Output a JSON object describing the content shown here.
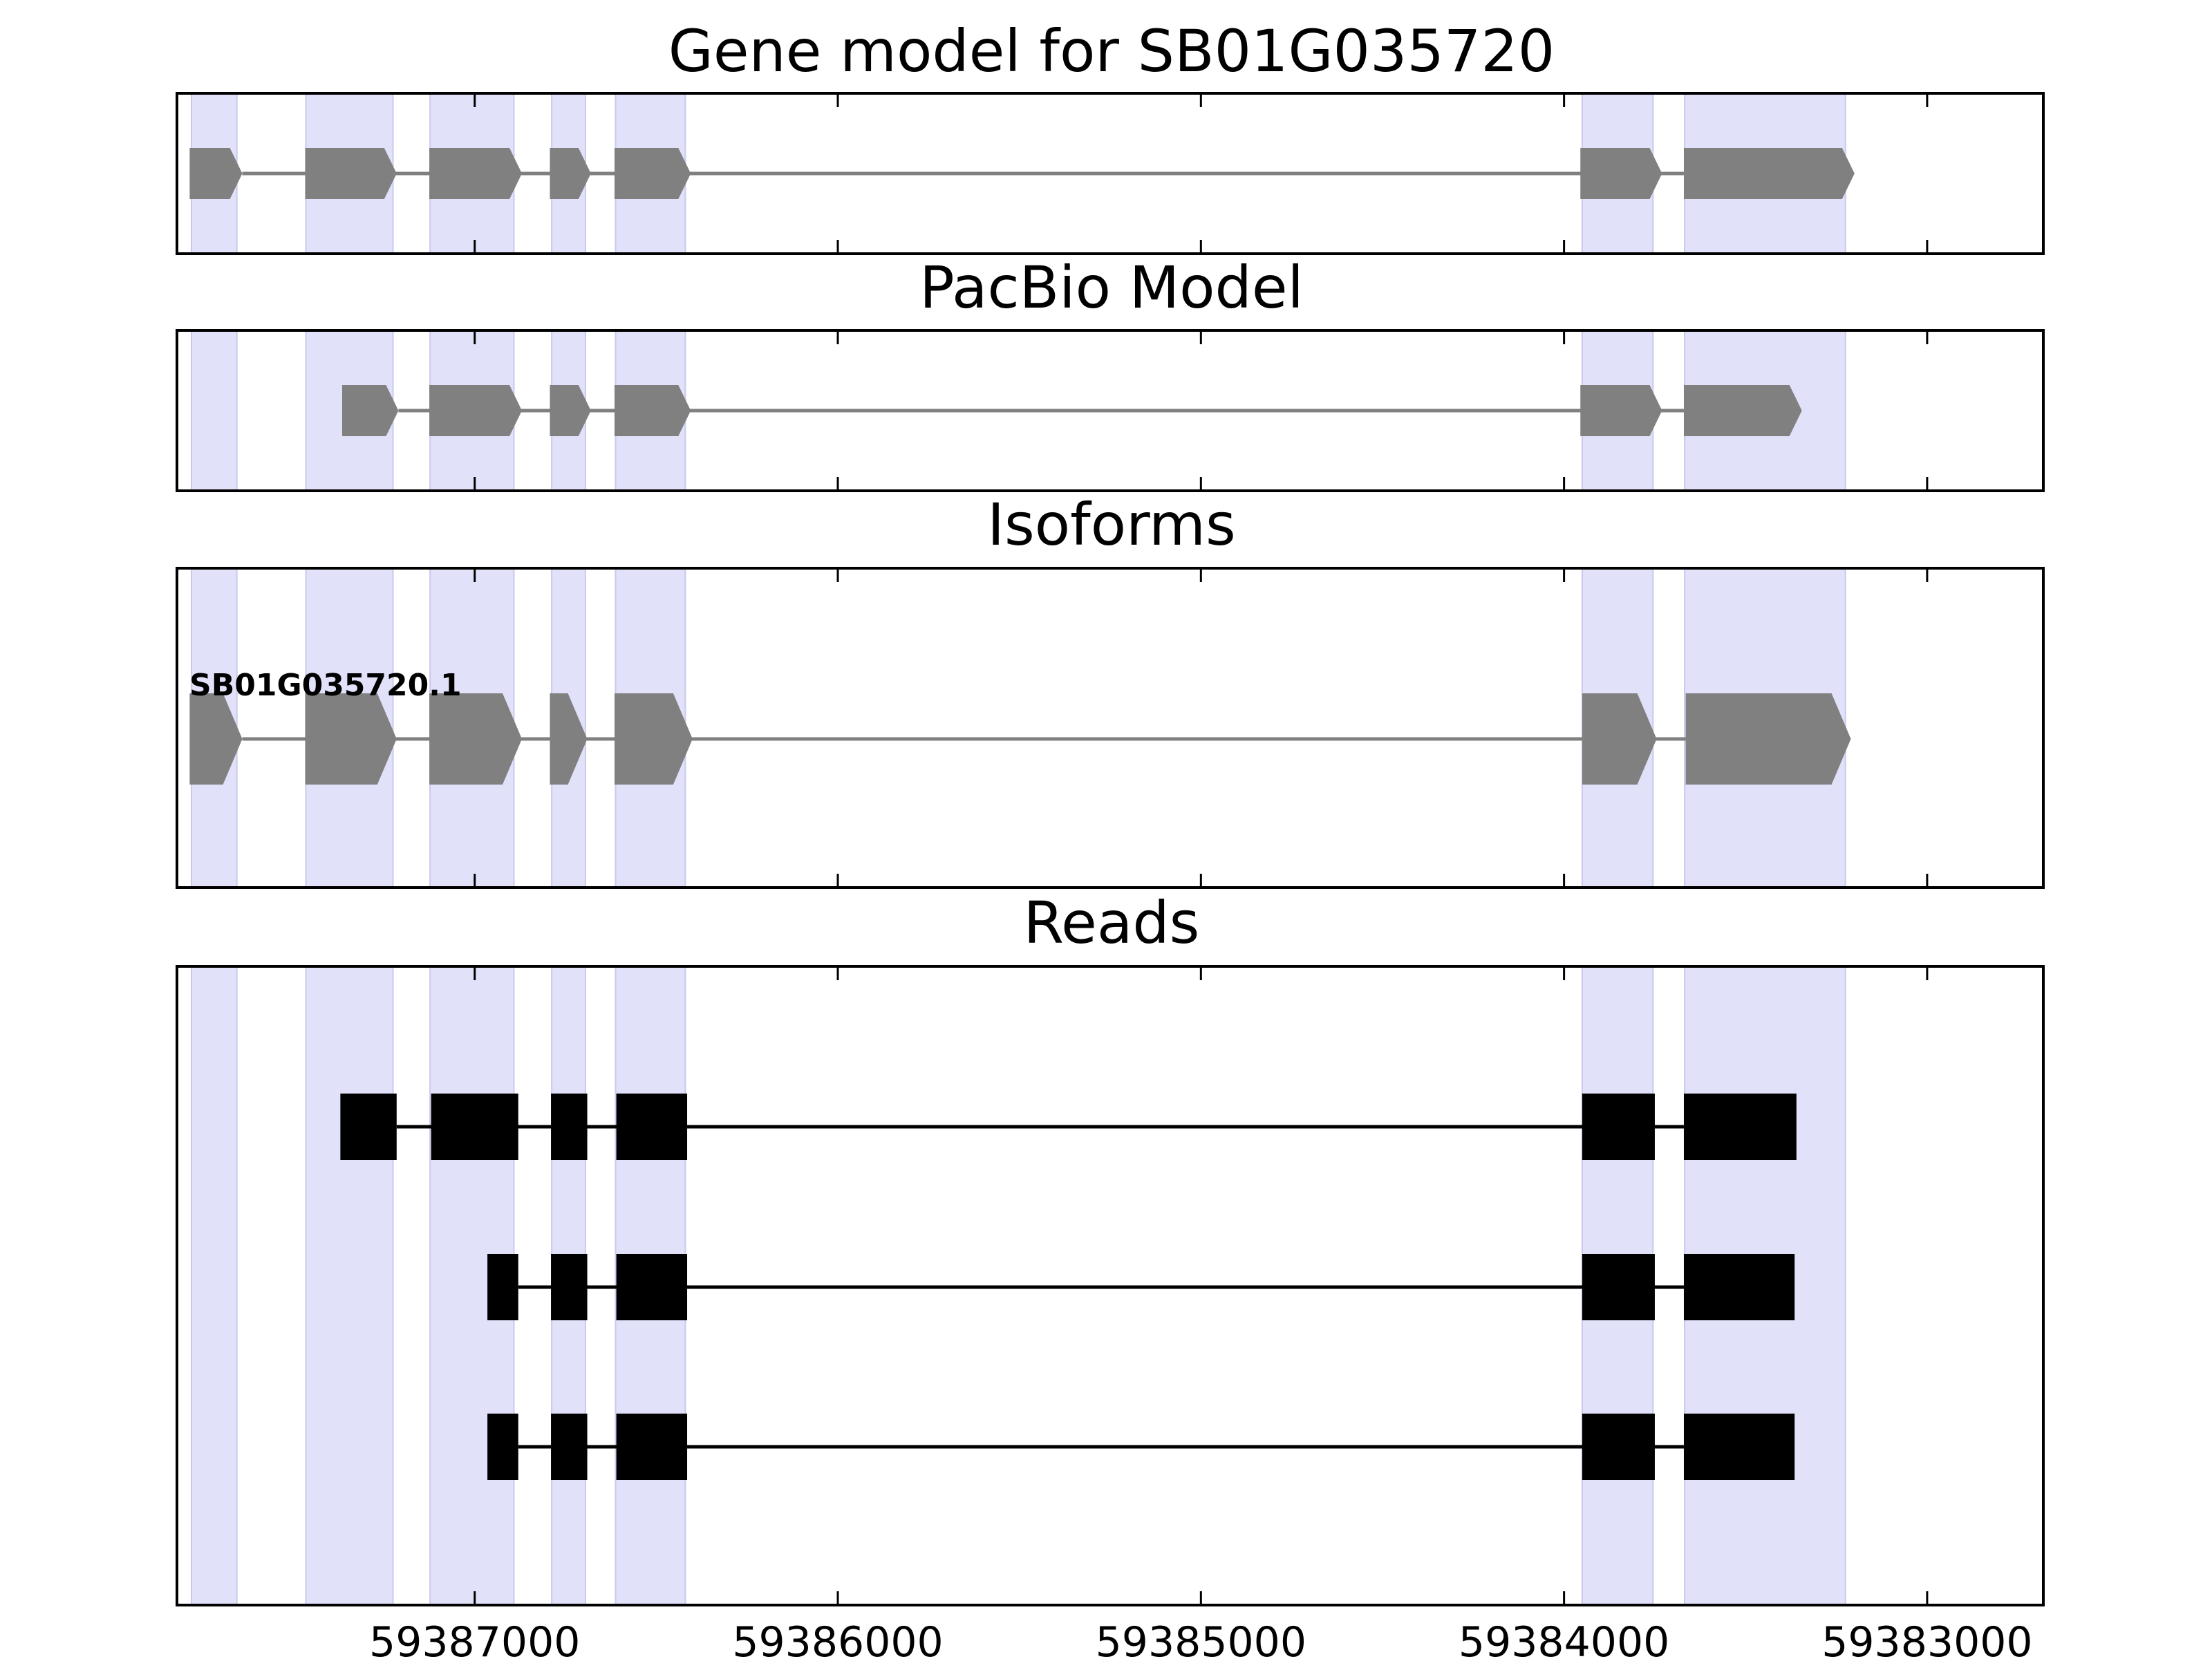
{
  "titles": {
    "gene_model": "Gene model for SB01G035720",
    "pacbio": "PacBio Model",
    "isoforms": "Isoforms",
    "reads": "Reads"
  },
  "isoform_label": "SB01G035720.1",
  "colors": {
    "highlight": "#e1e1fa",
    "exon_gray": "#808080",
    "read_black": "#000000",
    "frame": "#000000"
  },
  "chart_data": {
    "type": "gene-track",
    "x_axis": {
      "reversed": true,
      "range": [
        59387820,
        59382680
      ],
      "ticks": [
        59387000,
        59386000,
        59385000,
        59384000,
        59383000
      ],
      "tick_labels": [
        "59387000",
        "59386000",
        "59385000",
        "59384000",
        "59383000"
      ]
    },
    "highlight_regions": [
      [
        59387780,
        59387655
      ],
      [
        59387465,
        59387225
      ],
      [
        59387123,
        59386892
      ],
      [
        59386788,
        59386695
      ],
      [
        59386612,
        59386420
      ],
      [
        59383950,
        59383755
      ],
      [
        59383668,
        59383225
      ]
    ],
    "gene_model": [
      [
        59387785,
        59387640
      ],
      [
        59387467,
        59387215
      ],
      [
        59387125,
        59386870
      ],
      [
        59386793,
        59386680
      ],
      [
        59386615,
        59386405
      ],
      [
        59383955,
        59383730
      ],
      [
        59383670,
        59383200
      ]
    ],
    "pacbio_model": [
      [
        59387365,
        59387210
      ],
      [
        59387125,
        59386870
      ],
      [
        59386793,
        59386680
      ],
      [
        59386615,
        59386405
      ],
      [
        59383955,
        59383730
      ],
      [
        59383670,
        59383345
      ]
    ],
    "isoforms": [
      {
        "name": "SB01G035720.1",
        "exons": [
          [
            59387785,
            59387640
          ],
          [
            59387467,
            59387215
          ],
          [
            59387125,
            59386870
          ],
          [
            59386793,
            59386690
          ],
          [
            59386615,
            59386400
          ],
          [
            59383950,
            59383745
          ],
          [
            59383665,
            59383210
          ]
        ]
      }
    ],
    "reads": [
      [
        [
          59387370,
          59387215
        ],
        [
          59387120,
          59386880
        ],
        [
          59386790,
          59386690
        ],
        [
          59386610,
          59386415
        ],
        [
          59383950,
          59383750
        ],
        [
          59383670,
          59383360
        ]
      ],
      [
        [
          59386965,
          59386880
        ],
        [
          59386790,
          59386690
        ],
        [
          59386610,
          59386415
        ],
        [
          59383950,
          59383750
        ],
        [
          59383670,
          59383365
        ]
      ],
      [
        [
          59386965,
          59386880
        ],
        [
          59386790,
          59386690
        ],
        [
          59386610,
          59386415
        ],
        [
          59383950,
          59383750
        ],
        [
          59383670,
          59383365
        ]
      ]
    ]
  }
}
